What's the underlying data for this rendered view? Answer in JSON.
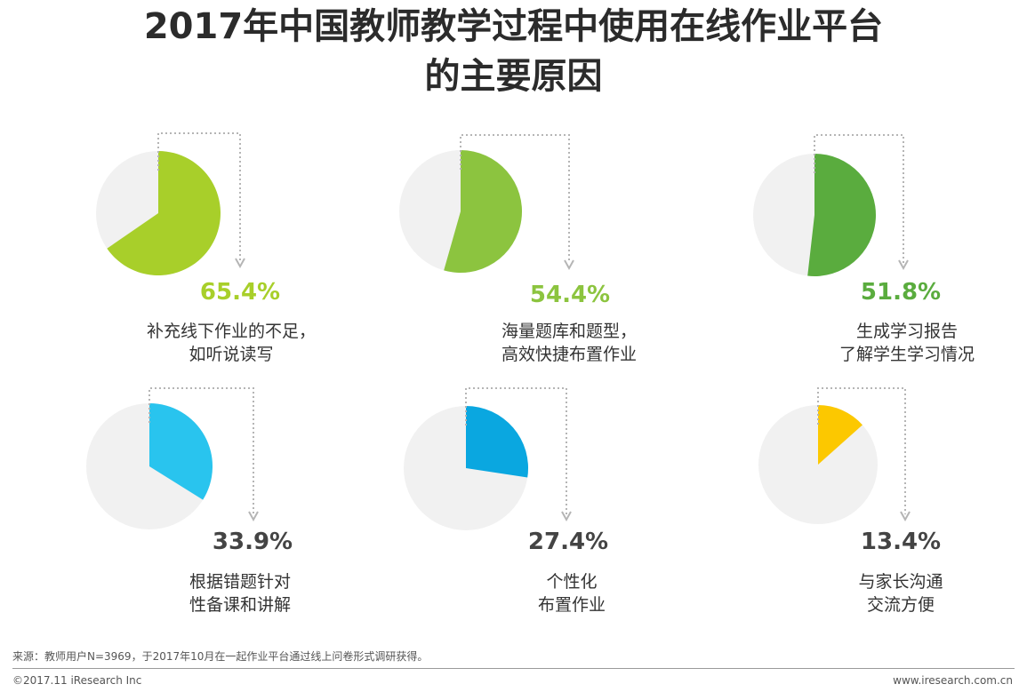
{
  "title": {
    "line1": "2017年中国教师教学过程中使用在线作业平台",
    "line2": "的主要原因"
  },
  "chart_data": {
    "type": "pie",
    "title": "2017年中国教师教学过程中使用在线作业平台的主要原因",
    "unit": "%",
    "items": [
      {
        "label_line1": "补充线下作业的不足，",
        "label_line2": "如听说读写",
        "value": 65.4,
        "value_label": "65.4%",
        "color": "#a8cf2a"
      },
      {
        "label_line1": "海量题库和题型，",
        "label_line2": "高效快捷布置作业",
        "value": 54.4,
        "value_label": "54.4%",
        "color": "#8cc43f"
      },
      {
        "label_line1": "生成学习报告",
        "label_line2": "了解学生学习情况",
        "value": 51.8,
        "value_label": "51.8%",
        "color": "#5aac3e"
      },
      {
        "label_line1": "根据错题针对",
        "label_line2": "性备课和讲解",
        "value": 33.9,
        "value_label": "33.9%",
        "color": "#29c4ee"
      },
      {
        "label_line1": "个性化",
        "label_line2": "布置作业",
        "value": 27.4,
        "value_label": "27.4%",
        "color": "#0aa7e0"
      },
      {
        "label_line1": "与家长沟通",
        "label_line2": "交流方便",
        "value": 13.4,
        "value_label": "13.4%",
        "color": "#fcc800"
      }
    ]
  },
  "colors": {
    "remainder": "#f1f1f1",
    "percent_text_top": "#8cc43f",
    "percent_text_bottom": "#444444",
    "connector": "#b5b5b5"
  },
  "footer": {
    "source": "来源：教师用户N=3969，于2017年10月在一起作业平台通过线上问卷形式调研获得。",
    "copyright": "©2017.11 iResearch Inc",
    "website": "www.iresearch.com.cn"
  }
}
